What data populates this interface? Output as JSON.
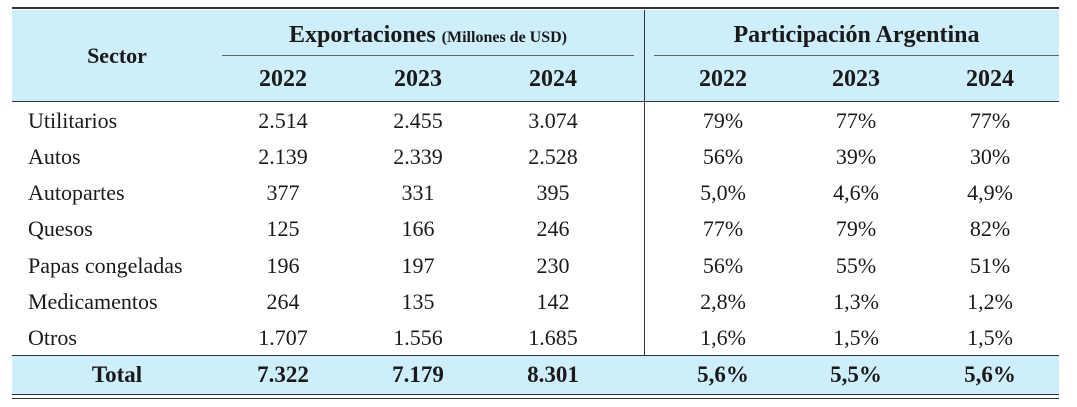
{
  "header": {
    "sector": "Sector",
    "exports_title": "Exportaciones",
    "exports_unit": "(Millones de USD)",
    "share_title": "Participación Argentina",
    "years": [
      "2022",
      "2023",
      "2024",
      "2022",
      "2023",
      "2024"
    ]
  },
  "rows": [
    {
      "name": "Utilitarios",
      "values": [
        "2.514",
        "2.455",
        "3.074",
        "79%",
        "77%",
        "77%"
      ]
    },
    {
      "name": "Autos",
      "values": [
        "2.139",
        "2.339",
        "2.528",
        "56%",
        "39%",
        "30%"
      ]
    },
    {
      "name": "Autopartes",
      "values": [
        "377",
        "331",
        "395",
        "5,0%",
        "4,6%",
        "4,9%"
      ]
    },
    {
      "name": "Quesos",
      "values": [
        "125",
        "166",
        "246",
        "77%",
        "79%",
        "82%"
      ]
    },
    {
      "name": "Papas congeladas",
      "values": [
        "196",
        "197",
        "230",
        "56%",
        "55%",
        "51%"
      ]
    },
    {
      "name": "Medicamentos",
      "values": [
        "264",
        "135",
        "142",
        "2,8%",
        "1,3%",
        "1,2%"
      ]
    },
    {
      "name": "Otros",
      "values": [
        "1.707",
        "1.556",
        "1.685",
        "1,6%",
        "1,5%",
        "1,5%"
      ]
    }
  ],
  "total": {
    "name": "Total",
    "values": [
      "7.322",
      "7.179",
      "8.301",
      "5,6%",
      "5,5%",
      "5,6%"
    ]
  }
}
